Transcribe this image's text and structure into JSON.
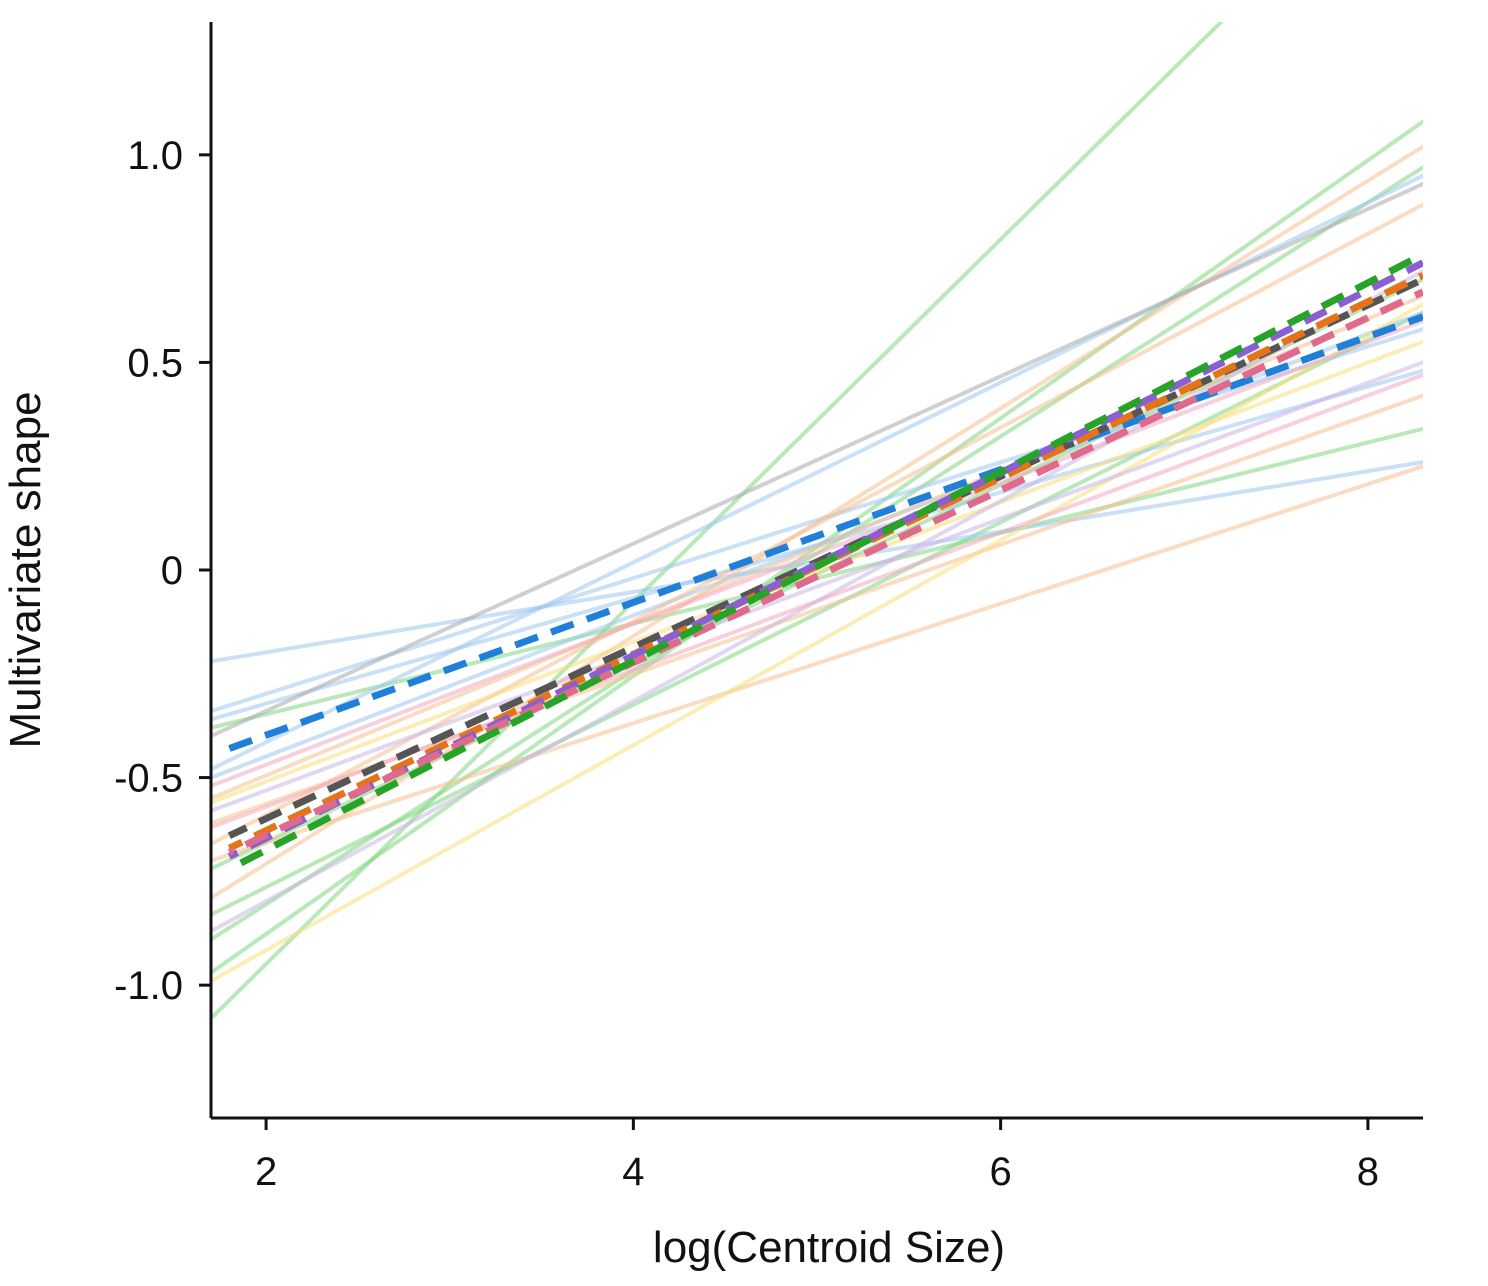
{
  "chart_data": {
    "type": "line",
    "title": "",
    "xlabel": "log(Centroid Size)",
    "ylabel": "Multivariate shape",
    "xlim": [
      1.7,
      8.3
    ],
    "ylim": [
      -1.32,
      1.32
    ],
    "x_ticks": [
      {
        "value": 2,
        "label": "2"
      },
      {
        "value": 4,
        "label": "4"
      },
      {
        "value": 6,
        "label": "6"
      },
      {
        "value": 8,
        "label": "8"
      }
    ],
    "y_ticks": [
      {
        "value": 1.0,
        "label": "1.0"
      },
      {
        "value": 0.5,
        "label": "0.5"
      },
      {
        "value": 0,
        "label": "0"
      },
      {
        "value": -0.5,
        "label": "-0.5"
      },
      {
        "value": -1.0,
        "label": "-1.0"
      }
    ],
    "grid": false,
    "legend": "none",
    "thin_lines": [
      {
        "color": "#7fd67f",
        "x": [
          1.7,
          7.2
        ],
        "y": [
          -1.08,
          1.32
        ]
      },
      {
        "color": "#7fd67f",
        "x": [
          1.7,
          8.3
        ],
        "y": [
          -0.97,
          1.08
        ]
      },
      {
        "color": "#7fd67f",
        "x": [
          1.7,
          8.3
        ],
        "y": [
          -0.89,
          0.97
        ]
      },
      {
        "color": "#7fd67f",
        "x": [
          1.7,
          8.3
        ],
        "y": [
          -0.38,
          0.34
        ]
      },
      {
        "color": "#7fd67f",
        "x": [
          1.7,
          8.3
        ],
        "y": [
          -0.83,
          0.62
        ]
      },
      {
        "color": "#7fd67f",
        "x": [
          1.7,
          8.3
        ],
        "y": [
          -0.72,
          0.7
        ]
      },
      {
        "color": "#9cc7ef",
        "x": [
          1.7,
          8.3
        ],
        "y": [
          -0.22,
          0.26
        ]
      },
      {
        "color": "#9cc7ef",
        "x": [
          1.7,
          8.3
        ],
        "y": [
          -0.34,
          0.58
        ]
      },
      {
        "color": "#9cc7ef",
        "x": [
          1.7,
          8.3
        ],
        "y": [
          -0.48,
          0.95
        ]
      },
      {
        "color": "#9cc7ef",
        "x": [
          1.7,
          8.3
        ],
        "y": [
          -0.36,
          0.48
        ]
      },
      {
        "color": "#9cc7ef",
        "x": [
          1.7,
          8.3
        ],
        "y": [
          -0.5,
          0.62
        ]
      },
      {
        "color": "#f5bf8f",
        "x": [
          1.7,
          8.3
        ],
        "y": [
          -0.79,
          1.02
        ]
      },
      {
        "color": "#f5bf8f",
        "x": [
          1.7,
          8.3
        ],
        "y": [
          -0.61,
          0.42
        ]
      },
      {
        "color": "#f5bf8f",
        "x": [
          1.7,
          8.3
        ],
        "y": [
          -0.7,
          0.25
        ]
      },
      {
        "color": "#f5bf8f",
        "x": [
          1.7,
          8.3
        ],
        "y": [
          -0.55,
          0.66
        ]
      },
      {
        "color": "#f5bf8f",
        "x": [
          1.7,
          8.3
        ],
        "y": [
          -0.66,
          0.88
        ]
      },
      {
        "color": "#f7df7a",
        "x": [
          1.7,
          8.3
        ],
        "y": [
          -0.99,
          0.64
        ]
      },
      {
        "color": "#f7df7a",
        "x": [
          1.7,
          8.3
        ],
        "y": [
          -0.56,
          0.55
        ]
      },
      {
        "color": "#c8b6e6",
        "x": [
          1.7,
          8.3
        ],
        "y": [
          -0.87,
          0.72
        ]
      },
      {
        "color": "#c8b6e6",
        "x": [
          1.7,
          8.3
        ],
        "y": [
          -0.58,
          0.5
        ]
      },
      {
        "color": "#f2a8bf",
        "x": [
          1.7,
          8.3
        ],
        "y": [
          -0.52,
          0.6
        ]
      },
      {
        "color": "#f2a8bf",
        "x": [
          1.7,
          8.3
        ],
        "y": [
          -0.62,
          0.47
        ]
      },
      {
        "color": "#a9a9a9",
        "x": [
          1.7,
          8.3
        ],
        "y": [
          -0.4,
          0.93
        ]
      }
    ],
    "series": [
      {
        "color": "#1f7fd9",
        "x": [
          1.8,
          8.3
        ],
        "y": [
          -0.43,
          0.61
        ]
      },
      {
        "color": "#555555",
        "x": [
          1.8,
          8.3
        ],
        "y": [
          -0.64,
          0.7
        ]
      },
      {
        "color": "#e5731a",
        "x": [
          1.8,
          8.3
        ],
        "y": [
          -0.67,
          0.71
        ]
      },
      {
        "color": "#8b5fd1",
        "x": [
          1.8,
          8.3
        ],
        "y": [
          -0.69,
          0.74
        ]
      },
      {
        "color": "#e06a8c",
        "x": [
          1.8,
          8.3
        ],
        "y": [
          -0.68,
          0.67
        ]
      },
      {
        "color": "#27a327",
        "x": [
          1.8,
          8.3
        ],
        "y": [
          -0.72,
          0.76
        ]
      }
    ]
  }
}
